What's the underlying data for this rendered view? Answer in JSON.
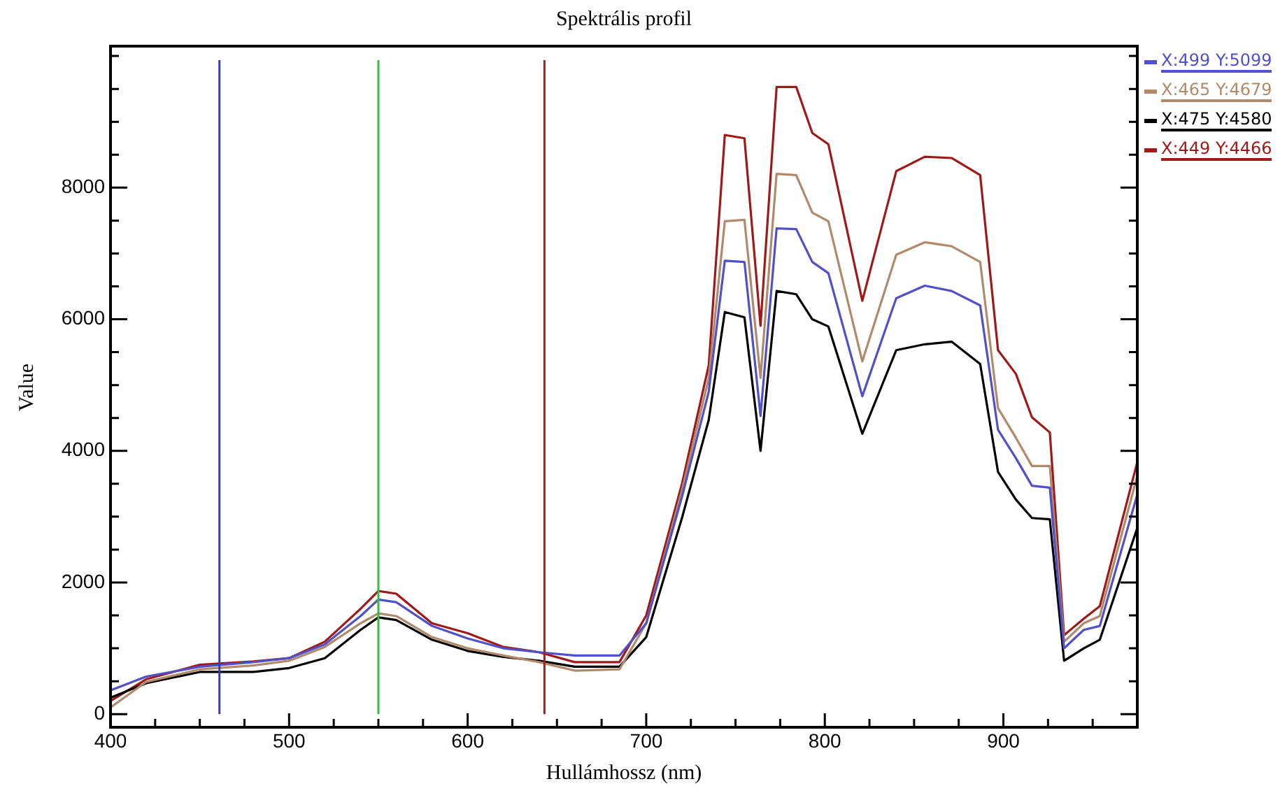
{
  "chart_data": {
    "type": "line",
    "title": "Spektrális profil",
    "xlabel": "Hullámhossz (nm)",
    "ylabel": "Value",
    "x": [
      400,
      420,
      450,
      480,
      500,
      520,
      540,
      550,
      560,
      580,
      600,
      620,
      640,
      660,
      685,
      700,
      720,
      735,
      744,
      755,
      764,
      773,
      784,
      793,
      802,
      821,
      840,
      856,
      871,
      887,
      897,
      907,
      916,
      926,
      934,
      945,
      954,
      975
    ],
    "series": [
      {
        "name": "X:499 Y:5099",
        "color": "#5050c8",
        "values": [
          360,
          570,
          720,
          790,
          850,
          1060,
          1490,
          1740,
          1700,
          1340,
          1150,
          1000,
          940,
          890,
          890,
          1380,
          3300,
          4900,
          6890,
          6870,
          4530,
          7380,
          7370,
          6870,
          6700,
          4830,
          6320,
          6510,
          6430,
          6210,
          4320,
          3890,
          3470,
          3440,
          1000,
          1280,
          1340,
          3340
        ]
      },
      {
        "name": "X:465 Y:4679",
        "color": "#b08a6a",
        "values": [
          100,
          490,
          680,
          740,
          810,
          1020,
          1380,
          1530,
          1490,
          1170,
          1000,
          890,
          790,
          660,
          680,
          1380,
          3400,
          5100,
          7490,
          7510,
          5110,
          8210,
          8190,
          7620,
          7490,
          5360,
          6980,
          7170,
          7110,
          6870,
          4650,
          4200,
          3770,
          3770,
          1100,
          1380,
          1490,
          3620
        ]
      },
      {
        "name": "X:475 Y:4580",
        "color": "#000000",
        "values": [
          250,
          470,
          640,
          640,
          700,
          850,
          1280,
          1470,
          1430,
          1130,
          960,
          870,
          810,
          720,
          720,
          1170,
          2980,
          4470,
          6110,
          6030,
          4000,
          6430,
          6380,
          6000,
          5890,
          4260,
          5530,
          5620,
          5660,
          5320,
          3680,
          3260,
          2980,
          2960,
          810,
          1000,
          1130,
          2830
        ]
      },
      {
        "name": "X:449 Y:4466",
        "color": "#a01818",
        "values": [
          200,
          530,
          750,
          800,
          850,
          1100,
          1600,
          1870,
          1830,
          1380,
          1230,
          1020,
          940,
          790,
          790,
          1500,
          3500,
          5300,
          8800,
          8750,
          5900,
          9530,
          9530,
          8830,
          8660,
          6280,
          8250,
          8470,
          8450,
          8190,
          5530,
          5170,
          4510,
          4280,
          1200,
          1450,
          1640,
          3830
        ]
      }
    ],
    "xlim": [
      400,
      975
    ],
    "xticks": [
      400,
      {
        "value": 425,
        "label": null
      },
      {
        "value": 450,
        "label": null
      },
      {
        "value": 475,
        "label": null
      },
      500,
      {
        "value": 525,
        "label": null
      },
      {
        "value": 550,
        "label": null
      },
      {
        "value": 575,
        "label": null
      },
      600,
      {
        "value": 625,
        "label": null
      },
      {
        "value": 650,
        "label": null
      },
      {
        "value": 675,
        "label": null
      },
      700,
      {
        "value": 725,
        "label": null
      },
      {
        "value": 750,
        "label": null
      },
      {
        "value": 775,
        "label": null
      },
      800,
      {
        "value": 825,
        "label": null
      },
      {
        "value": 850,
        "label": null
      },
      {
        "value": 875,
        "label": null
      },
      900,
      {
        "value": 925,
        "label": null
      },
      {
        "value": 950,
        "label": null
      }
    ],
    "ylim": [
      -200,
      10150
    ],
    "yticks": [
      0,
      {
        "value": 500,
        "label": null
      },
      {
        "value": 1000,
        "label": null
      },
      {
        "value": 1500,
        "label": null
      },
      2000,
      {
        "value": 2500,
        "label": null
      },
      {
        "value": 3000,
        "label": null
      },
      {
        "value": 3500,
        "label": null
      },
      4000,
      {
        "value": 4500,
        "label": null
      },
      {
        "value": 5000,
        "label": null
      },
      {
        "value": 5500,
        "label": null
      },
      6000,
      {
        "value": 6500,
        "label": null
      },
      {
        "value": 7000,
        "label": null
      },
      {
        "value": 7500,
        "label": null
      },
      8000,
      {
        "value": 8500,
        "label": null
      },
      {
        "value": 9000,
        "label": null
      },
      {
        "value": 9500,
        "label": null
      },
      {
        "value": 10000,
        "label": null
      }
    ],
    "ref_lines": [
      {
        "axis": "x",
        "value": 461,
        "color": "#3a3ab0"
      },
      {
        "axis": "x",
        "value": 550,
        "color": "#30c040"
      },
      {
        "axis": "x",
        "value": 643,
        "color": "#a02020"
      }
    ],
    "grid": false,
    "legend": "top right",
    "marker": "none",
    "line_style": "solid"
  }
}
